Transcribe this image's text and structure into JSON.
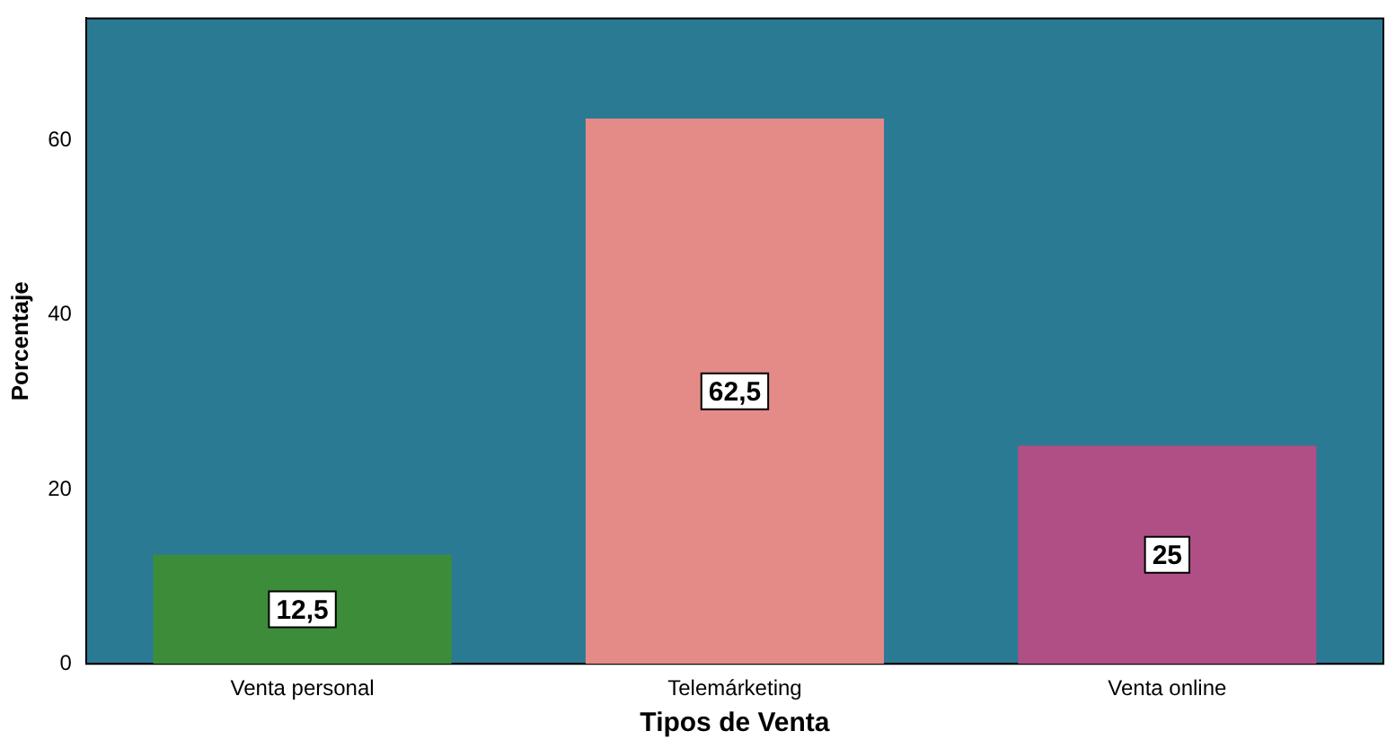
{
  "chart_data": {
    "type": "bar",
    "xlabel": "Tipos de Venta",
    "ylabel": "Porcentaje",
    "categories": [
      "Venta personal",
      "Telemárketing",
      "Venta online"
    ],
    "values": [
      12.5,
      62.5,
      25
    ],
    "colors": [
      "#3d8c3a",
      "#e48a87",
      "#b04f86"
    ],
    "value_labels": [
      "12,5",
      "62,5",
      "25"
    ],
    "ylim": [
      0,
      74
    ],
    "yticks": [
      0,
      20,
      40,
      60
    ],
    "grid": false,
    "legend": false
  }
}
